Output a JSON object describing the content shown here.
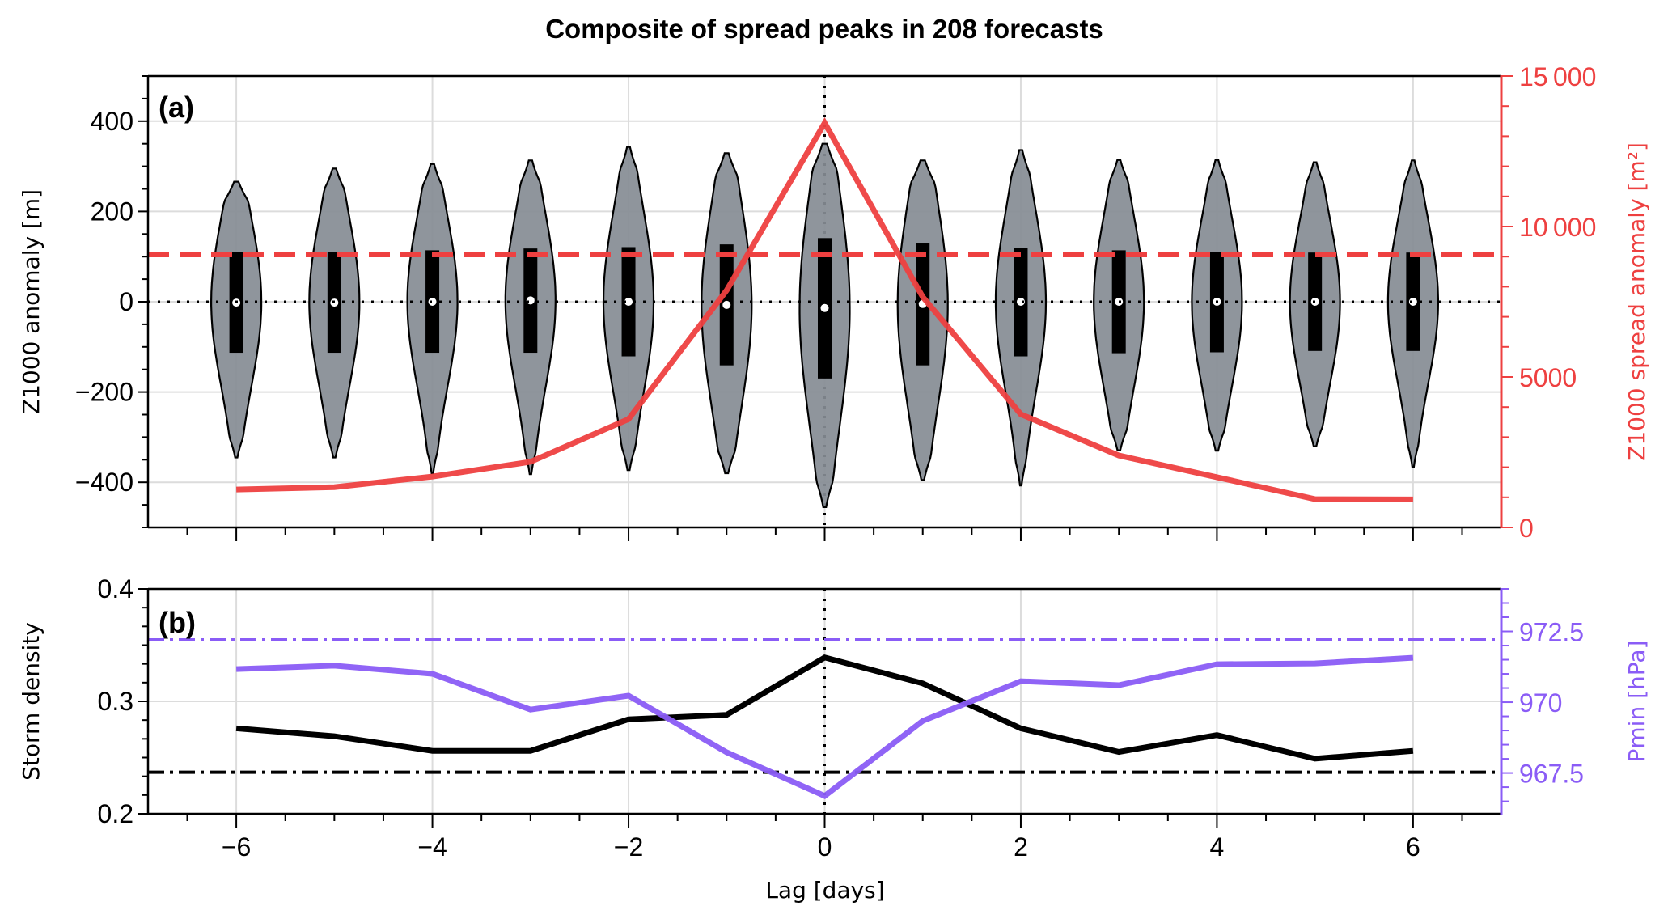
{
  "chart_data": {
    "title": "Composite of spread peaks in 208 forecasts",
    "xlabel": "Lag [days]",
    "x": [
      -6,
      -5,
      -4,
      -3,
      -2,
      -1,
      0,
      1,
      2,
      3,
      4,
      5,
      6
    ],
    "xlim": [
      -6.9,
      6.9
    ],
    "xticks": [
      -6,
      -4,
      -2,
      0,
      2,
      4,
      6
    ],
    "xtick_labels": [
      "−6",
      "−4",
      "−2",
      "0",
      "2",
      "4",
      "6"
    ],
    "grid": true,
    "reference_vline_x": 0,
    "panels": [
      {
        "label": "(a)",
        "type": "violin+line",
        "left_axis": {
          "label": "Z1000 anomaly [m]",
          "ylim": [
            -500,
            500
          ],
          "ticks": [
            -400,
            -200,
            0,
            200,
            400
          ],
          "tick_labels": [
            "−400",
            "−200",
            "0",
            "200",
            "400"
          ],
          "color": "#000000"
        },
        "right_axis": {
          "label": "Z1000 spread anomaly [m²]",
          "ylim": [
            0,
            15000
          ],
          "ticks": [
            0,
            5000,
            10000,
            15000
          ],
          "tick_labels": [
            "0",
            "5000",
            "10 000",
            "15 000"
          ],
          "color": "#ee4040"
        },
        "violins": {
          "name": "Z1000 anomaly distribution",
          "axis": "left",
          "fill": "#858c94",
          "min": [
            -345,
            -345,
            -380,
            -382,
            -373,
            -380,
            -455,
            -395,
            -407,
            -329,
            -330,
            -320,
            -366
          ],
          "q1": [
            -113,
            -113,
            -113,
            -113,
            -121,
            -141,
            -170,
            -141,
            -121,
            -114,
            -112,
            -109,
            -109
          ],
          "median": [
            -2,
            -2,
            0,
            3,
            0,
            -7,
            -14,
            -5,
            0,
            0,
            0,
            0,
            0
          ],
          "q3": [
            111,
            111,
            114,
            118,
            121,
            127,
            141,
            129,
            120,
            114,
            111,
            109,
            109
          ],
          "max": [
            266,
            295,
            305,
            313,
            343,
            329,
            350,
            313,
            336,
            314,
            314,
            309,
            313
          ]
        },
        "series": [
          {
            "name": "Z1000 spread anomaly",
            "axis": "right",
            "style": "solid",
            "color": "#ee4040",
            "values": [
              1260,
              1340,
              1690,
              2180,
              3600,
              7880,
              13440,
              7660,
              3760,
              2390,
              1670,
              940,
              930
            ]
          }
        ],
        "reference_lines": [
          {
            "name": "zero-anomaly",
            "axis": "left",
            "value": 0,
            "style": "dotted",
            "color": "#000000"
          },
          {
            "name": "spread-climatology",
            "axis": "right",
            "value": 9060,
            "style": "dashed",
            "color": "#ee4040"
          }
        ]
      },
      {
        "label": "(b)",
        "type": "line",
        "left_axis": {
          "label": "Storm density",
          "ylim": [
            0.2,
            0.4
          ],
          "ticks": [
            0.2,
            0.3,
            0.4
          ],
          "tick_labels": [
            "0.2",
            "0.3",
            "0.4"
          ],
          "color": "#000000"
        },
        "right_axis": {
          "label": "Pmin [hPa]",
          "ylim": [
            966.06,
            974.0
          ],
          "ticks": [
            967.5,
            970,
            972.5
          ],
          "tick_labels": [
            "967.5",
            "970",
            "972.5"
          ],
          "color": "#8a5cf6"
        },
        "series": [
          {
            "name": "Storm density",
            "axis": "left",
            "style": "solid",
            "color": "#000000",
            "values": [
              0.276,
              0.269,
              0.256,
              0.256,
              0.284,
              0.288,
              0.339,
              0.316,
              0.276,
              0.255,
              0.27,
              0.249,
              0.256
            ]
          },
          {
            "name": "Pmin",
            "axis": "right",
            "style": "solid",
            "color": "#8a5cf6",
            "values": [
              971.17,
              971.29,
              971.0,
              969.74,
              970.23,
              968.23,
              966.69,
              969.34,
              970.74,
              970.6,
              971.34,
              971.37,
              971.57
            ]
          }
        ],
        "reference_lines": [
          {
            "name": "storm-density-climatology",
            "axis": "left",
            "value": 0.237,
            "style": "dashdot",
            "color": "#000000"
          },
          {
            "name": "pmin-climatology",
            "axis": "right",
            "value": 972.2,
            "style": "dashdot",
            "color": "#8a5cf6"
          }
        ]
      }
    ]
  }
}
